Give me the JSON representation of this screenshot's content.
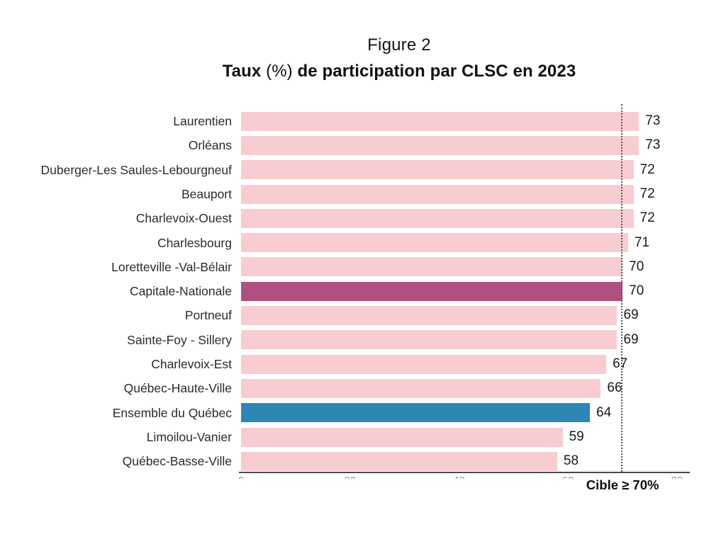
{
  "figure": {
    "title": "Figure 2",
    "subtitle": {
      "bold_prefix": "Taux",
      "light_mid": "(%)",
      "bold_suffix": "de participation par CLSC en 2023"
    }
  },
  "chart_data": {
    "type": "bar",
    "orientation": "horizontal",
    "title": "Figure 2",
    "subtitle": "Taux (%) de participation par CLSC en 2023",
    "categories": [
      "Laurentien",
      "Orléans",
      "Duberger-Les Saules-Lebourgneuf",
      "Beauport",
      "Charlevoix-Ouest",
      "Charlesbourg",
      "Loretteville -Val-Bélair",
      "Capitale-Nationale",
      "Portneuf",
      "Sainte-Foy - Sillery",
      "Charlevoix-Est",
      "Québec-Haute-Ville",
      "Ensemble du Québec",
      "Limoilou-Vanier",
      "Québec-Basse-Ville"
    ],
    "values": [
      73,
      73,
      72,
      72,
      72,
      71,
      70,
      70,
      69,
      69,
      67,
      66,
      64,
      59,
      58
    ],
    "bar_roles": [
      "default",
      "default",
      "default",
      "default",
      "default",
      "default",
      "default",
      "region_highlight",
      "default",
      "default",
      "default",
      "default",
      "province_highlight",
      "default",
      "default"
    ],
    "colors": {
      "default": "#f8cdd2",
      "region_highlight": "#b05080",
      "province_highlight": "#2e86b4"
    },
    "xlim": [
      0,
      80
    ],
    "xticks": [
      0,
      20,
      40,
      60,
      80
    ],
    "target_line": {
      "value": 70,
      "label": "Cible ≥ 70%"
    },
    "grid": false,
    "legend": false,
    "value_labels": true
  }
}
